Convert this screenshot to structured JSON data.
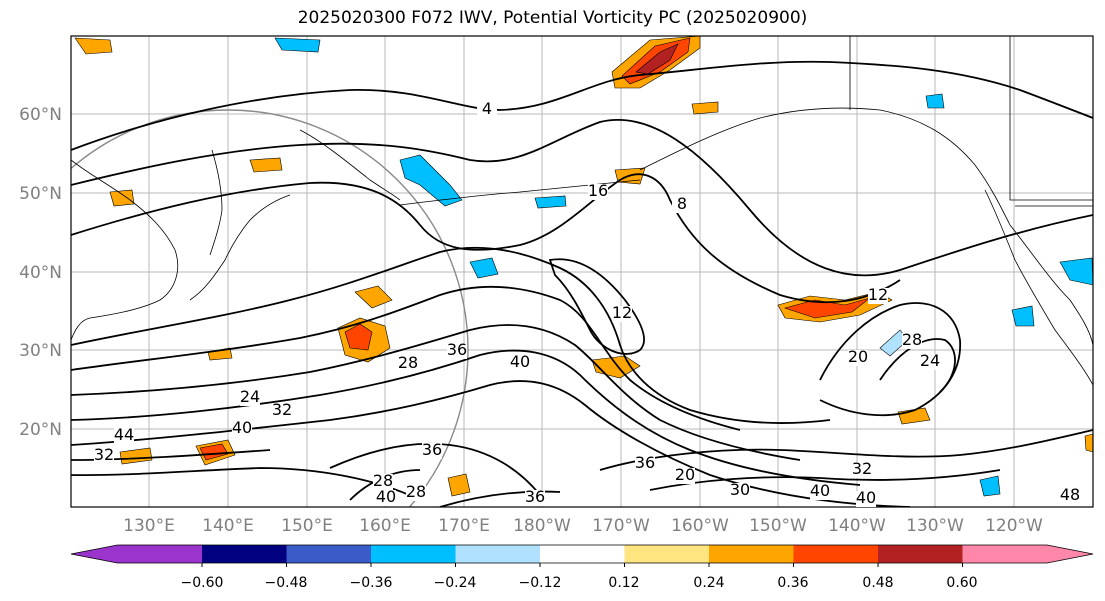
{
  "title": "2025020300 F072 IWV, Potential Vorticity PC (2025020900)",
  "lat_labels": [
    "60°N",
    "50°N",
    "40°N",
    "30°N",
    "20°N"
  ],
  "lon_labels": [
    "130°E",
    "140°E",
    "150°E",
    "160°E",
    "170°E",
    "180°W",
    "170°W",
    "160°W",
    "150°W",
    "140°W",
    "130°W",
    "120°W"
  ],
  "contour_labels": [
    "4",
    "8",
    "16",
    "12",
    "12",
    "20",
    "28",
    "24",
    "40",
    "36",
    "28",
    "24",
    "32",
    "40",
    "36",
    "44",
    "28",
    "40",
    "28",
    "36",
    "20",
    "30",
    "40",
    "32",
    "40",
    "48",
    "36",
    "32"
  ],
  "colorbar": {
    "ticks": [
      "−0.60",
      "−0.48",
      "−0.36",
      "−0.24",
      "−0.12",
      "0.12",
      "0.24",
      "0.36",
      "0.48",
      "0.60"
    ],
    "colors": [
      "#9a34cd",
      "#000080",
      "#3a5bc8",
      "#00bfff",
      "#b0e2ff",
      "#ffffff",
      "#ffe57f",
      "#ffa500",
      "#ff4500",
      "#b22222",
      "#ff88aa"
    ]
  },
  "colors": {
    "frame": "#000000",
    "grid": "#b0b0b0",
    "axis_text": "#808080",
    "contour": "#000000"
  }
}
